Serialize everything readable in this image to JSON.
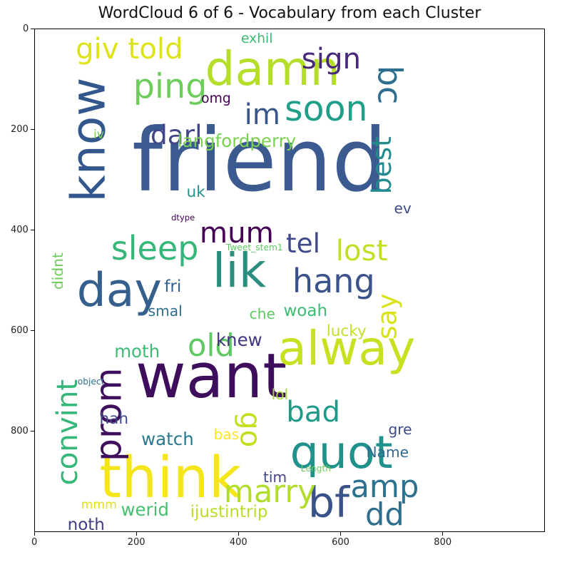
{
  "chart_data": {
    "type": "wordcloud",
    "title": "WordCloud 6 of 6 - Vocabulary from each Cluster",
    "x_ticks": [
      "0",
      "200",
      "400",
      "600",
      "800"
    ],
    "y_ticks": [
      "0",
      "200",
      "400",
      "600",
      "800"
    ],
    "xlim": [
      0,
      1000
    ],
    "ylim": [
      1000,
      0
    ],
    "grid": false,
    "words": [
      {
        "text": "friend",
        "x": 440,
        "y": 260,
        "size": 170,
        "color": "#3b5a8f",
        "rotate": 0
      },
      {
        "text": "want",
        "x": 345,
        "y": 690,
        "size": 120,
        "color": "#3e0d5b",
        "rotate": 0
      },
      {
        "text": "think",
        "x": 265,
        "y": 890,
        "size": 110,
        "color": "#f5e51b",
        "rotate": 0
      },
      {
        "text": "damn",
        "x": 465,
        "y": 80,
        "size": 92,
        "color": "#b5de2b",
        "rotate": 0
      },
      {
        "text": "know",
        "x": 105,
        "y": 220,
        "size": 92,
        "color": "#31578c",
        "rotate": -90
      },
      {
        "text": "alway",
        "x": 610,
        "y": 635,
        "size": 92,
        "color": "#c8e020",
        "rotate": 0
      },
      {
        "text": "lik",
        "x": 400,
        "y": 480,
        "size": 92,
        "color": "#2a8d7e",
        "rotate": 0
      },
      {
        "text": "day",
        "x": 165,
        "y": 520,
        "size": 90,
        "color": "#355f8d",
        "rotate": 0
      },
      {
        "text": "quot",
        "x": 600,
        "y": 840,
        "size": 88,
        "color": "#21918c",
        "rotate": 0
      },
      {
        "text": "prom",
        "x": 145,
        "y": 765,
        "size": 70,
        "color": "#3f0f5e",
        "rotate": -90
      },
      {
        "text": "bf",
        "x": 575,
        "y": 940,
        "size": 82,
        "color": "#39528a",
        "rotate": 0
      },
      {
        "text": "soon",
        "x": 570,
        "y": 160,
        "size": 68,
        "color": "#1f9e89",
        "rotate": 0
      },
      {
        "text": "ping",
        "x": 265,
        "y": 115,
        "size": 66,
        "color": "#6ccd5a",
        "rotate": 0
      },
      {
        "text": "giv told",
        "x": 185,
        "y": 40,
        "size": 56,
        "color": "#dde318",
        "rotate": 0
      },
      {
        "text": "bc",
        "x": 695,
        "y": 110,
        "size": 64,
        "color": "#2e6e8e",
        "rotate": 90
      },
      {
        "text": "hang",
        "x": 585,
        "y": 500,
        "size": 64,
        "color": "#3b528b",
        "rotate": 0
      },
      {
        "text": "sleep",
        "x": 235,
        "y": 435,
        "size": 64,
        "color": "#35b779",
        "rotate": 0
      },
      {
        "text": "old",
        "x": 345,
        "y": 630,
        "size": 60,
        "color": "#5ec962",
        "rotate": 0
      },
      {
        "text": "marry",
        "x": 460,
        "y": 920,
        "size": 60,
        "color": "#b2dd2d",
        "rotate": 0
      },
      {
        "text": "amp",
        "x": 685,
        "y": 910,
        "size": 60,
        "color": "#2c728e",
        "rotate": 0
      },
      {
        "text": "dd",
        "x": 685,
        "y": 965,
        "size": 60,
        "color": "#2e6e8e",
        "rotate": 0
      },
      {
        "text": "convint",
        "x": 65,
        "y": 800,
        "size": 56,
        "color": "#35b779",
        "rotate": -90
      },
      {
        "text": "go",
        "x": 420,
        "y": 795,
        "size": 56,
        "color": "#c5df1f",
        "rotate": 90
      },
      {
        "text": "bad",
        "x": 545,
        "y": 760,
        "size": 56,
        "color": "#1f9a8a",
        "rotate": 0
      },
      {
        "text": "mum",
        "x": 395,
        "y": 405,
        "size": 56,
        "color": "#440154",
        "rotate": 0
      },
      {
        "text": "lost",
        "x": 640,
        "y": 440,
        "size": 56,
        "color": "#c2df23",
        "rotate": 0
      },
      {
        "text": "sign",
        "x": 580,
        "y": 60,
        "size": 56,
        "color": "#482878",
        "rotate": 0
      },
      {
        "text": "im",
        "x": 445,
        "y": 170,
        "size": 56,
        "color": "#39568c",
        "rotate": 0
      },
      {
        "text": "tel",
        "x": 525,
        "y": 425,
        "size": 52,
        "color": "#3e4a89",
        "rotate": 0
      },
      {
        "text": "darl.",
        "x": 285,
        "y": 210,
        "size": 52,
        "color": "#404688",
        "rotate": 0
      },
      {
        "text": "say",
        "x": 690,
        "y": 570,
        "size": 52,
        "color": "#d8e219",
        "rotate": -90
      },
      {
        "text": "best",
        "x": 680,
        "y": 270,
        "size": 52,
        "color": "#238a8d",
        "rotate": -90
      },
      {
        "text": "langfordperry",
        "x": 395,
        "y": 222,
        "size": 34,
        "color": "#7ad151",
        "rotate": 0
      },
      {
        "text": "moth",
        "x": 200,
        "y": 640,
        "size": 34,
        "color": "#3bbb75",
        "rotate": 0
      },
      {
        "text": "knew",
        "x": 400,
        "y": 617,
        "size": 34,
        "color": "#453581",
        "rotate": 0
      },
      {
        "text": "watch",
        "x": 260,
        "y": 815,
        "size": 34,
        "color": "#2a788e",
        "rotate": 0
      },
      {
        "text": "werid",
        "x": 215,
        "y": 955,
        "size": 34,
        "color": "#46c06f",
        "rotate": 0
      },
      {
        "text": "ijustintrip",
        "x": 380,
        "y": 960,
        "size": 32,
        "color": "#b8de29",
        "rotate": 0
      },
      {
        "text": "noth",
        "x": 100,
        "y": 985,
        "size": 32,
        "color": "#424086",
        "rotate": 0
      },
      {
        "text": "woah",
        "x": 530,
        "y": 560,
        "size": 32,
        "color": "#3dbc74",
        "rotate": 0
      },
      {
        "text": "lucky",
        "x": 610,
        "y": 600,
        "size": 30,
        "color": "#c0df25",
        "rotate": 0
      },
      {
        "text": "fri",
        "x": 270,
        "y": 512,
        "size": 32,
        "color": "#355f8d",
        "rotate": 0
      },
      {
        "text": "smal",
        "x": 255,
        "y": 560,
        "size": 28,
        "color": "#2e6f8e",
        "rotate": 0
      },
      {
        "text": "che",
        "x": 445,
        "y": 565,
        "size": 28,
        "color": "#5ec962",
        "rotate": 0
      },
      {
        "text": "hah",
        "x": 155,
        "y": 775,
        "size": 30,
        "color": "#3f4889",
        "rotate": 0
      },
      {
        "text": "lol",
        "x": 480,
        "y": 725,
        "size": 28,
        "color": "#a5db36",
        "rotate": 0
      },
      {
        "text": "bas",
        "x": 375,
        "y": 805,
        "size": 28,
        "color": "#fde725",
        "rotate": 0
      },
      {
        "text": "gre",
        "x": 715,
        "y": 795,
        "size": 28,
        "color": "#3e4989",
        "rotate": 0
      },
      {
        "text": "Name",
        "x": 690,
        "y": 840,
        "size": 28,
        "color": "#31688e",
        "rotate": 0
      },
      {
        "text": "tim",
        "x": 470,
        "y": 890,
        "size": 28,
        "color": "#404588",
        "rotate": 0
      },
      {
        "text": "Length",
        "x": 550,
        "y": 872,
        "size": 17,
        "color": "#6ccd5a",
        "rotate": 0
      },
      {
        "text": "mmm",
        "x": 125,
        "y": 945,
        "size": 24,
        "color": "#dde318",
        "rotate": 0
      },
      {
        "text": "object",
        "x": 110,
        "y": 700,
        "size": 17,
        "color": "#2c728e",
        "rotate": 0
      },
      {
        "text": "uk",
        "x": 315,
        "y": 325,
        "size": 30,
        "color": "#2a8e8c",
        "rotate": 0
      },
      {
        "text": "omg",
        "x": 355,
        "y": 140,
        "size": 26,
        "color": "#440154",
        "rotate": 0
      },
      {
        "text": "iv",
        "x": 125,
        "y": 210,
        "size": 24,
        "color": "#7ad151",
        "rotate": 0
      },
      {
        "text": "exhil",
        "x": 435,
        "y": 20,
        "size": 26,
        "color": "#3bbb75",
        "rotate": 0
      },
      {
        "text": "ev",
        "x": 720,
        "y": 355,
        "size": 28,
        "color": "#3e4a89",
        "rotate": 0
      },
      {
        "text": "dtype",
        "x": 290,
        "y": 375,
        "size": 16,
        "color": "#440154",
        "rotate": 0
      },
      {
        "text": "Tweet_stem1",
        "x": 430,
        "y": 433,
        "size": 17,
        "color": "#5ec962",
        "rotate": 0
      },
      {
        "text": "didnt",
        "x": 45,
        "y": 480,
        "size": 28,
        "color": "#6ccd5a",
        "rotate": -90
      }
    ]
  }
}
